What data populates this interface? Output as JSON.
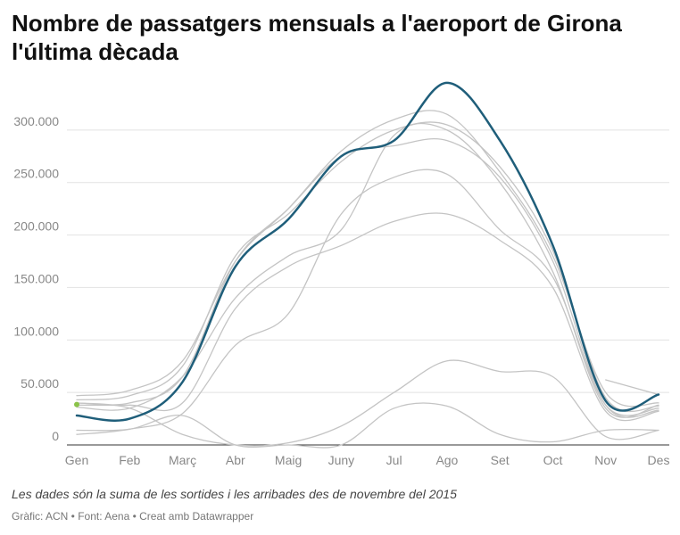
{
  "header": {
    "title": "Nombre de passatgers mensuals a l'aeroport de Girona l'última dècada"
  },
  "notes": "Les dades són la suma de les sortides i les arribades des de novembre del 2015",
  "footer": "Gràfic: ACN • Font: Aena • Creat amb Datawrapper",
  "colors": {
    "highlight": "#1f5e7a",
    "context": "#c4c4c4",
    "start_dot": "#8bc34a",
    "grid": "#e2e2e2",
    "axis": "#333333"
  },
  "chart_data": {
    "type": "line",
    "title": "Nombre de passatgers mensuals a l'aeroport de Girona l'última dècada",
    "xlabel": "",
    "ylabel": "",
    "categories": [
      "Gen",
      "Feb",
      "Març",
      "Abr",
      "Maig",
      "Juny",
      "Jul",
      "Ago",
      "Set",
      "Oct",
      "Nov",
      "Des"
    ],
    "ylim": [
      0,
      350000
    ],
    "yticks": [
      0,
      50000,
      100000,
      150000,
      200000,
      250000,
      300000
    ],
    "ytick_labels": [
      "0",
      "50.000",
      "100.000",
      "150.000",
      "200.000",
      "250.000",
      "300.000"
    ],
    "grid": true,
    "legend": "none",
    "series": [
      {
        "highlight": true,
        "values": [
          28000,
          25000,
          60000,
          170000,
          215000,
          275000,
          290000,
          345000,
          290000,
          190000,
          42000,
          48000
        ]
      },
      {
        "highlight": false,
        "values": [
          null,
          null,
          null,
          null,
          null,
          null,
          null,
          null,
          null,
          null,
          62000,
          48000
        ]
      },
      {
        "highlight": false,
        "values": [
          47000,
          52000,
          80000,
          175000,
          225000,
          280000,
          310000,
          315000,
          260000,
          180000,
          50000,
          40000
        ]
      },
      {
        "highlight": false,
        "values": [
          43000,
          47000,
          75000,
          180000,
          220000,
          270000,
          300000,
          305000,
          265000,
          185000,
          45000,
          37000
        ]
      },
      {
        "highlight": false,
        "values": [
          40000,
          40000,
          65000,
          175000,
          225000,
          275000,
          285000,
          290000,
          255000,
          175000,
          38000,
          33000
        ]
      },
      {
        "highlight": false,
        "values": [
          36000,
          35000,
          65000,
          140000,
          180000,
          205000,
          295000,
          300000,
          250000,
          165000,
          35000,
          38000
        ]
      },
      {
        "highlight": false,
        "values": [
          38000,
          38000,
          40000,
          130000,
          170000,
          190000,
          213000,
          220000,
          195000,
          150000,
          32000,
          32000
        ]
      },
      {
        "highlight": false,
        "values": [
          10000,
          15000,
          30000,
          95000,
          125000,
          220000,
          255000,
          258000,
          205000,
          160000,
          38000,
          35000
        ]
      },
      {
        "highlight": false,
        "values": [
          40000,
          35000,
          10000,
          0,
          2000,
          18000,
          50000,
          80000,
          70000,
          65000,
          8000,
          14000
        ]
      },
      {
        "highlight": false,
        "values": [
          14000,
          15000,
          28000,
          0,
          0,
          0,
          35000,
          37000,
          10000,
          3000,
          14000,
          14000
        ]
      }
    ]
  }
}
